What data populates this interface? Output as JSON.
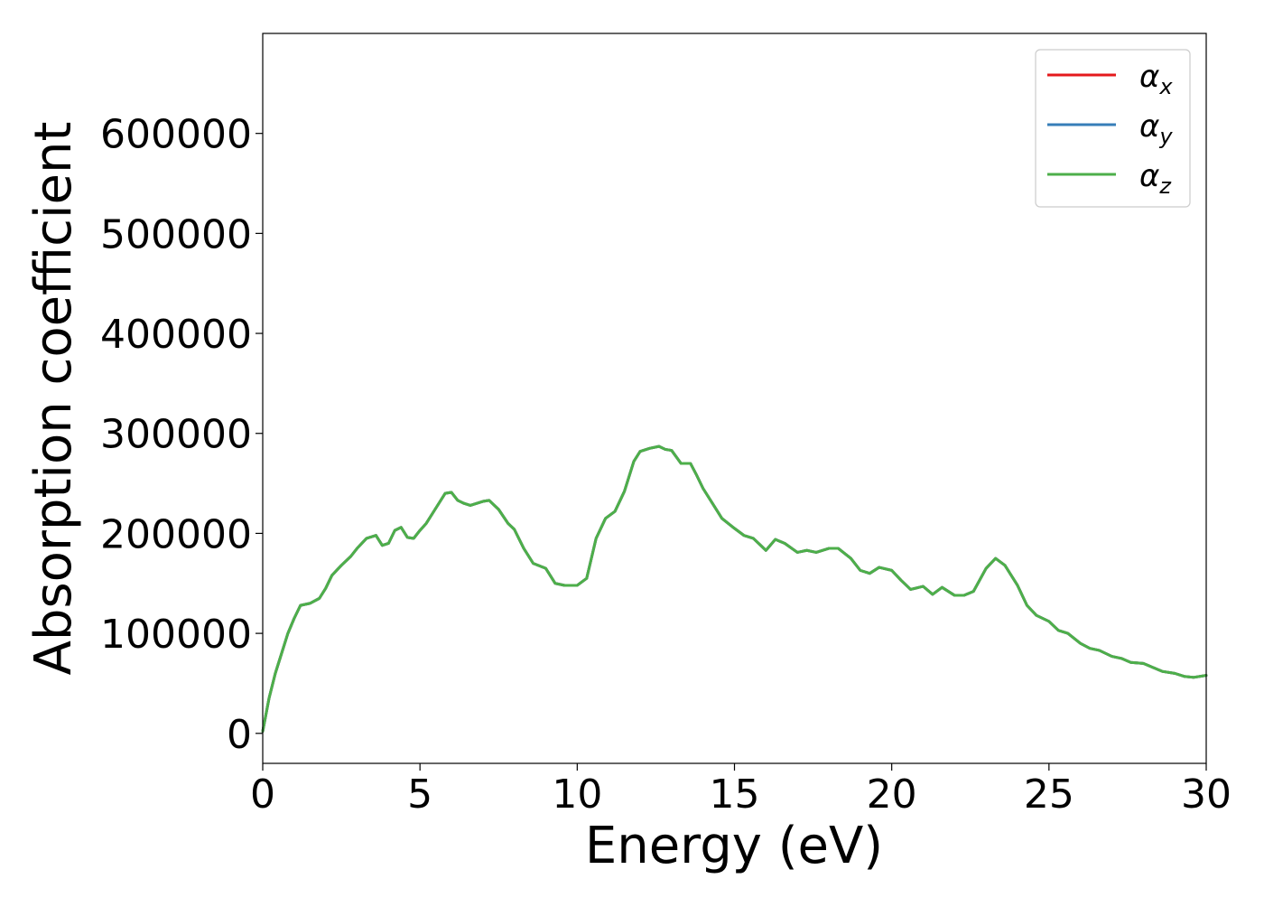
{
  "chart_data": {
    "type": "line",
    "title": "",
    "xlabel": "Energy (eV)",
    "ylabel": "Absorption coefficient",
    "xlim": [
      0,
      30
    ],
    "ylim": [
      -30000,
      700000
    ],
    "xticks": [
      0,
      5,
      10,
      15,
      20,
      25,
      30
    ],
    "xtick_labels": [
      "0",
      "5",
      "10",
      "15",
      "20",
      "25",
      "30"
    ],
    "yticks": [
      0,
      100000,
      200000,
      300000,
      400000,
      500000,
      600000
    ],
    "ytick_labels": [
      "0",
      "100000",
      "200000",
      "300000",
      "400000",
      "500000",
      "600000"
    ],
    "grid": false,
    "legend_position": "top-right",
    "x": [
      0.0,
      0.2,
      0.4,
      0.6,
      0.8,
      1.0,
      1.2,
      1.5,
      1.8,
      2.0,
      2.2,
      2.5,
      2.8,
      3.0,
      3.3,
      3.6,
      3.8,
      4.0,
      4.2,
      4.4,
      4.6,
      4.8,
      5.0,
      5.2,
      5.5,
      5.8,
      6.0,
      6.2,
      6.4,
      6.6,
      7.0,
      7.2,
      7.5,
      7.8,
      8.0,
      8.3,
      8.6,
      9.0,
      9.3,
      9.6,
      10.0,
      10.3,
      10.6,
      10.9,
      11.2,
      11.5,
      11.8,
      12.0,
      12.3,
      12.6,
      12.8,
      13.0,
      13.3,
      13.6,
      13.8,
      14.0,
      14.3,
      14.6,
      15.0,
      15.3,
      15.6,
      16.0,
      16.3,
      16.6,
      17.0,
      17.3,
      17.6,
      18.0,
      18.3,
      18.7,
      19.0,
      19.3,
      19.6,
      20.0,
      20.3,
      20.6,
      21.0,
      21.3,
      21.6,
      22.0,
      22.3,
      22.6,
      23.0,
      23.3,
      23.6,
      24.0,
      24.3,
      24.6,
      25.0,
      25.3,
      25.6,
      26.0,
      26.3,
      26.6,
      27.0,
      27.3,
      27.6,
      28.0,
      28.3,
      28.6,
      29.0,
      29.3,
      29.6,
      30.0
    ],
    "series": [
      {
        "name": "αx",
        "color": "#e41a1c",
        "values": [
          2000,
          35000,
          60000,
          80000,
          100000,
          115000,
          128000,
          130000,
          135000,
          145000,
          158000,
          168000,
          177000,
          185000,
          195000,
          198000,
          188000,
          190000,
          203000,
          206000,
          196000,
          195000,
          203000,
          210000,
          225000,
          240000,
          241000,
          233000,
          230000,
          228000,
          232000,
          233000,
          224000,
          210000,
          204000,
          185000,
          170000,
          165000,
          150000,
          148000,
          148000,
          155000,
          195000,
          215000,
          222000,
          242000,
          272000,
          282000,
          285000,
          287000,
          284000,
          283000,
          270000,
          270000,
          258000,
          245000,
          230000,
          215000,
          205000,
          198000,
          195000,
          183000,
          194000,
          190000,
          181000,
          183000,
          181000,
          185000,
          185000,
          175000,
          163000,
          160000,
          166000,
          163000,
          153000,
          144000,
          147000,
          139000,
          146000,
          138000,
          138000,
          142000,
          165000,
          175000,
          168000,
          148000,
          128000,
          118000,
          112000,
          103000,
          100000,
          90000,
          85000,
          83000,
          77000,
          75000,
          71000,
          70000,
          66000,
          62000,
          60000,
          57000,
          56000,
          58000
        ]
      },
      {
        "name": "αy",
        "color": "#377eb8",
        "values": [
          2000,
          35000,
          60000,
          80000,
          100000,
          115000,
          128000,
          130000,
          135000,
          145000,
          158000,
          168000,
          177000,
          185000,
          195000,
          198000,
          188000,
          190000,
          203000,
          206000,
          196000,
          195000,
          203000,
          210000,
          225000,
          240000,
          241000,
          233000,
          230000,
          228000,
          232000,
          233000,
          224000,
          210000,
          204000,
          185000,
          170000,
          165000,
          150000,
          148000,
          148000,
          155000,
          195000,
          215000,
          222000,
          242000,
          272000,
          282000,
          285000,
          287000,
          284000,
          283000,
          270000,
          270000,
          258000,
          245000,
          230000,
          215000,
          205000,
          198000,
          195000,
          183000,
          194000,
          190000,
          181000,
          183000,
          181000,
          185000,
          185000,
          175000,
          163000,
          160000,
          166000,
          163000,
          153000,
          144000,
          147000,
          139000,
          146000,
          138000,
          138000,
          142000,
          165000,
          175000,
          168000,
          148000,
          128000,
          118000,
          112000,
          103000,
          100000,
          90000,
          85000,
          83000,
          77000,
          75000,
          71000,
          70000,
          66000,
          62000,
          60000,
          57000,
          56000,
          58000
        ]
      },
      {
        "name": "αz",
        "color": "#4daf4a",
        "values": [
          2000,
          35000,
          60000,
          80000,
          100000,
          115000,
          128000,
          130000,
          135000,
          145000,
          158000,
          168000,
          177000,
          185000,
          195000,
          198000,
          188000,
          190000,
          203000,
          206000,
          196000,
          195000,
          203000,
          210000,
          225000,
          240000,
          241000,
          233000,
          230000,
          228000,
          232000,
          233000,
          224000,
          210000,
          204000,
          185000,
          170000,
          165000,
          150000,
          148000,
          148000,
          155000,
          195000,
          215000,
          222000,
          242000,
          272000,
          282000,
          285000,
          287000,
          284000,
          283000,
          270000,
          270000,
          258000,
          245000,
          230000,
          215000,
          205000,
          198000,
          195000,
          183000,
          194000,
          190000,
          181000,
          183000,
          181000,
          185000,
          185000,
          175000,
          163000,
          160000,
          166000,
          163000,
          153000,
          144000,
          147000,
          139000,
          146000,
          138000,
          138000,
          142000,
          165000,
          175000,
          168000,
          148000,
          128000,
          118000,
          112000,
          103000,
          100000,
          90000,
          85000,
          83000,
          77000,
          75000,
          71000,
          70000,
          66000,
          62000,
          60000,
          57000,
          56000,
          58000
        ]
      }
    ],
    "legend": [
      {
        "symbol": "α",
        "subscript": "x"
      },
      {
        "symbol": "α",
        "subscript": "y"
      },
      {
        "symbol": "α",
        "subscript": "z"
      }
    ]
  }
}
